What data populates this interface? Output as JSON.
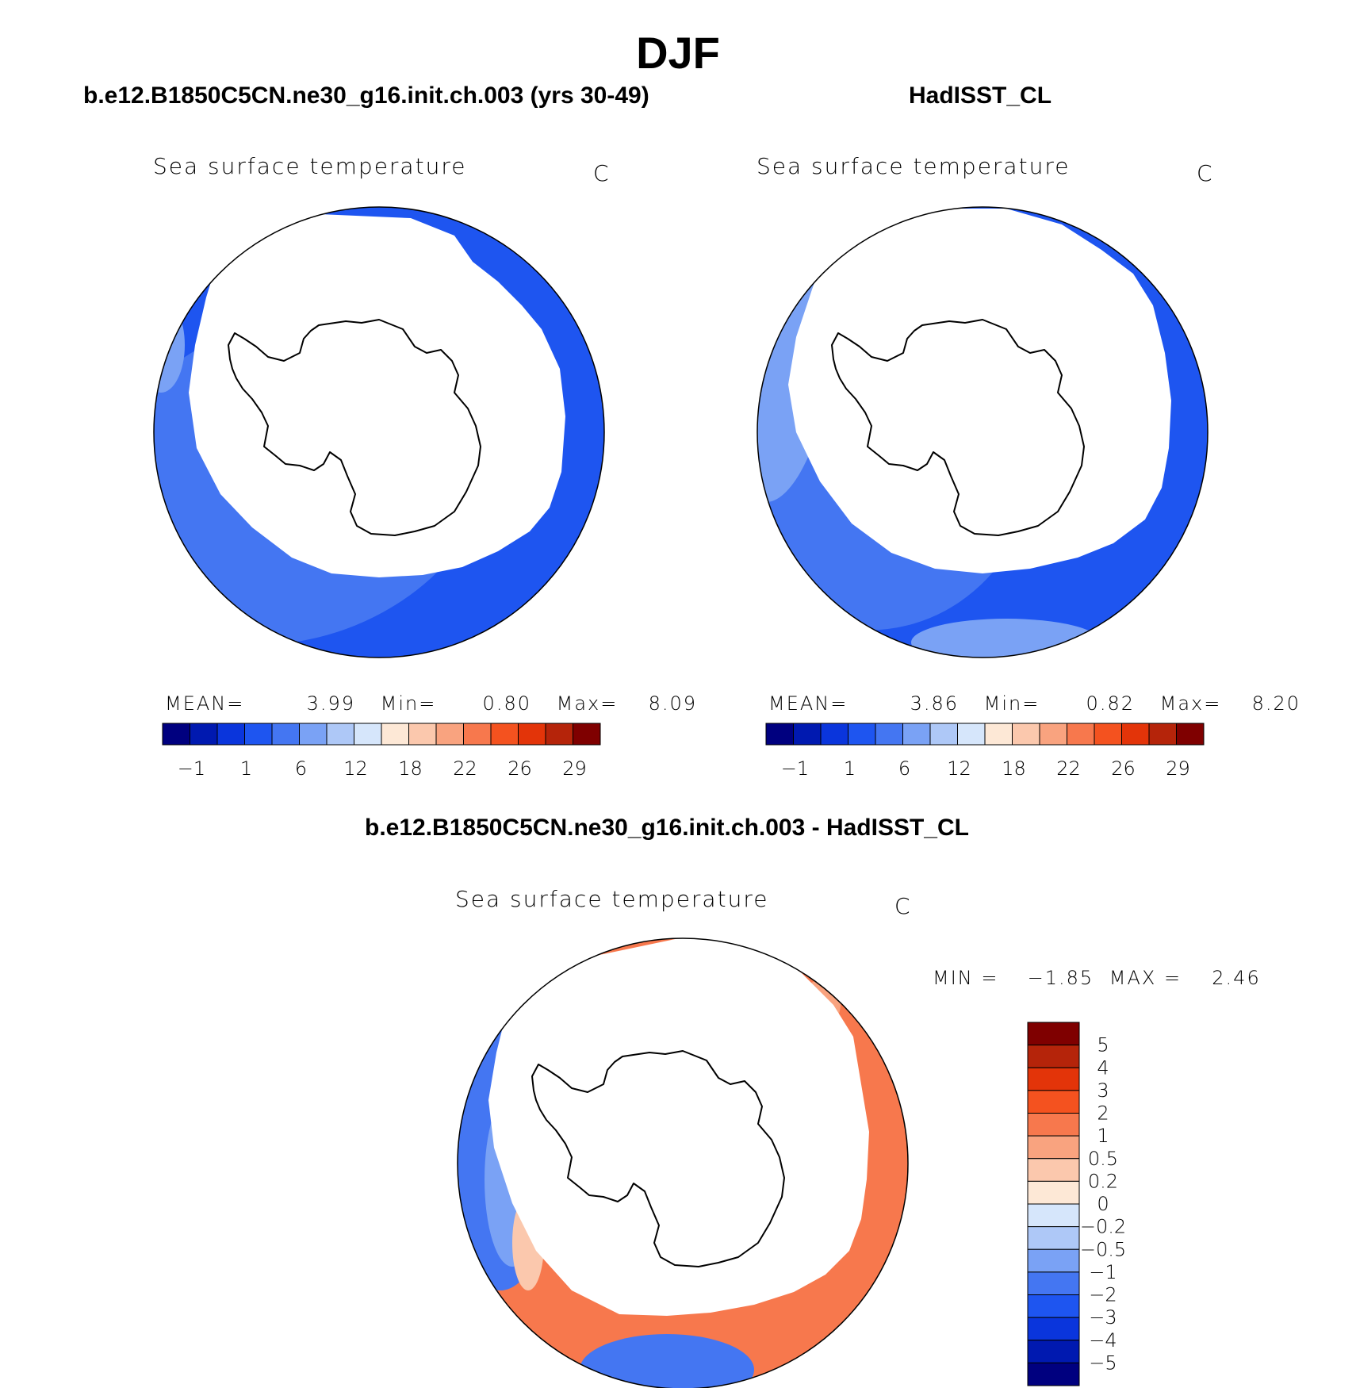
{
  "figure": {
    "title": "DJF"
  },
  "panels": [
    {
      "case_title": "b.e12.B1850C5CN.ne30_g16.init.ch.003 (yrs 30-49)",
      "var_title": "Sea surface temperature",
      "units": "C",
      "stats": {
        "mean_label": "MEAN=",
        "mean": "3.99",
        "min_label": "Min=",
        "min": "0.80",
        "max_label": "Max=",
        "max": "8.09"
      }
    },
    {
      "case_title": "HadISST_CL",
      "var_title": "Sea surface temperature",
      "units": "C",
      "stats": {
        "mean_label": "MEAN=",
        "mean": "3.86",
        "min_label": "Min=",
        "min": "0.82",
        "max_label": "Max=",
        "max": "8.20"
      }
    },
    {
      "case_title": "b.e12.B1850C5CN.ne30_g16.init.ch.003 - HadISST_CL",
      "var_title": "Sea surface temperature",
      "units": "C",
      "stats": {
        "min_label": "MIN =",
        "min": "−1.85",
        "max_label": "MAX =",
        "max": "2.46"
      }
    }
  ],
  "colorbar_abs": {
    "ticks": [
      "−1",
      "1",
      "6",
      "12",
      "18",
      "22",
      "26",
      "29"
    ],
    "colors": [
      "#00007f",
      "#0019b0",
      "#0a35dc",
      "#1e55f0",
      "#4476f2",
      "#7aa2f5",
      "#aec8f7",
      "#d6e6fb",
      "#fde8d6",
      "#fbc8ad",
      "#f9a37f",
      "#f7784d",
      "#f4521f",
      "#e33409",
      "#b5240a",
      "#7f0000"
    ]
  },
  "colorbar_diff": {
    "ticks": [
      "5",
      "4",
      "3",
      "2",
      "1",
      "0.5",
      "0.2",
      "0",
      "−0.2",
      "−0.5",
      "−1",
      "−2",
      "−3",
      "−4",
      "−5"
    ],
    "colors": [
      "#7f0000",
      "#b5240a",
      "#e33409",
      "#f4521f",
      "#f7784d",
      "#f9a37f",
      "#fbc8ad",
      "#fde8d6",
      "#d6e6fb",
      "#aec8f7",
      "#7aa2f5",
      "#4476f2",
      "#1e55f0",
      "#0a35dc",
      "#0019b0",
      "#00007f"
    ]
  },
  "map_colors": {
    "model_inner": "#1e55f0",
    "model_outer": "#4476f2",
    "model_edge": "#7aa2f5",
    "obs_inner": "#1e55f0",
    "obs_outer": "#4476f2",
    "obs_edge": "#7aa2f5",
    "diff_warm": "#f7784d",
    "diff_warm_light": "#f9a37f",
    "diff_cool": "#4476f2",
    "diff_cool_light": "#7aa2f5",
    "diff_pale": "#fbc8ad"
  }
}
